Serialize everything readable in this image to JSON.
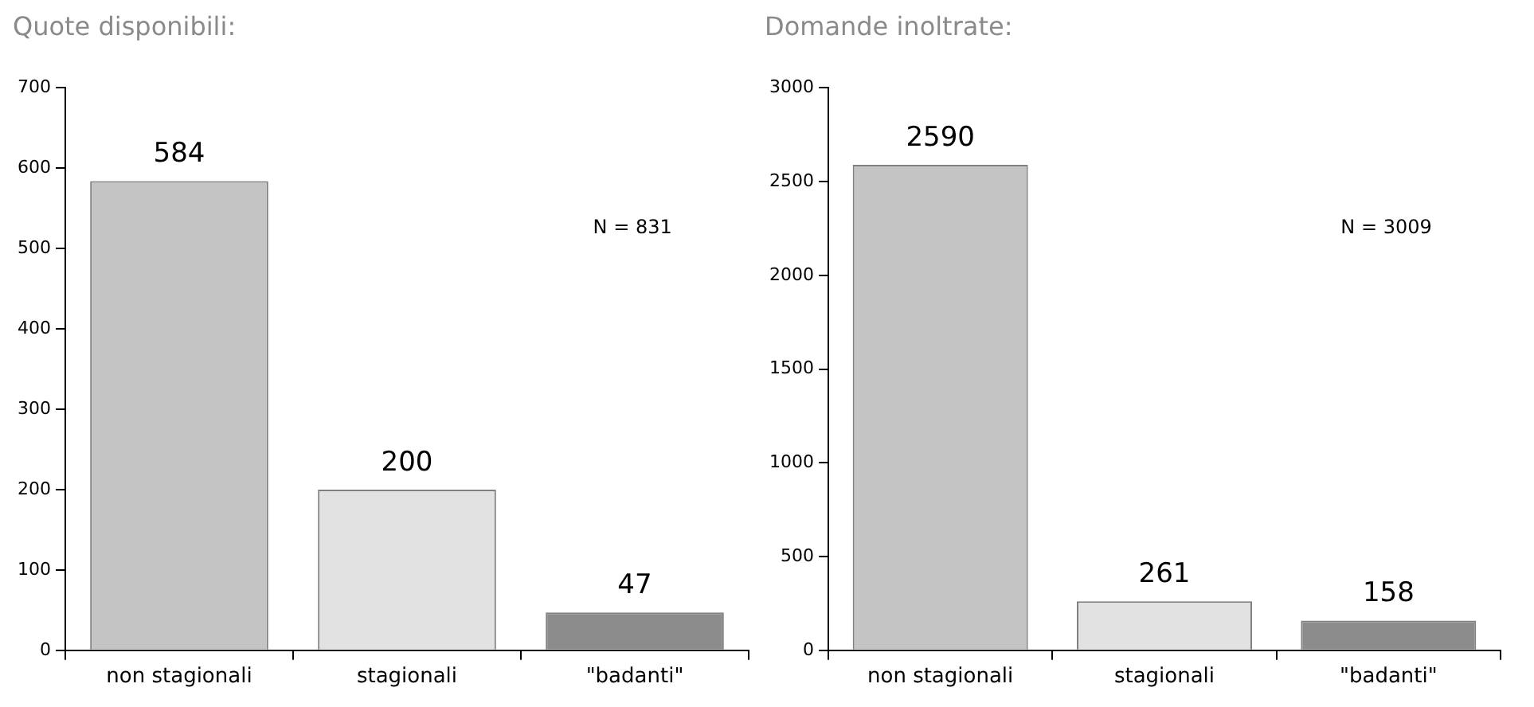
{
  "chart_data": [
    {
      "type": "bar",
      "title": "Quote disponibili:",
      "categories": [
        "non stagionali",
        "stagionali",
        "\"badanti\""
      ],
      "values": [
        584,
        200,
        47
      ],
      "colors": [
        "#c4c4c4",
        "#e2e2e2",
        "#8c8c8c"
      ],
      "ylim": [
        0,
        700
      ],
      "yticks": [
        0,
        100,
        200,
        300,
        400,
        500,
        600,
        700
      ],
      "grid": false,
      "legend": false,
      "data_labels": true,
      "annotations": [
        "N = 831"
      ]
    },
    {
      "type": "bar",
      "title": "Domande inoltrate:",
      "categories": [
        "non stagionali",
        "stagionali",
        "\"badanti\""
      ],
      "values": [
        2590,
        261,
        158
      ],
      "colors": [
        "#c4c4c4",
        "#e2e2e2",
        "#8c8c8c"
      ],
      "ylim": [
        0,
        3000
      ],
      "yticks": [
        0,
        500,
        1000,
        1500,
        2000,
        2500,
        3000
      ],
      "grid": false,
      "legend": false,
      "data_labels": true,
      "annotations": [
        "N = 3009"
      ]
    }
  ]
}
